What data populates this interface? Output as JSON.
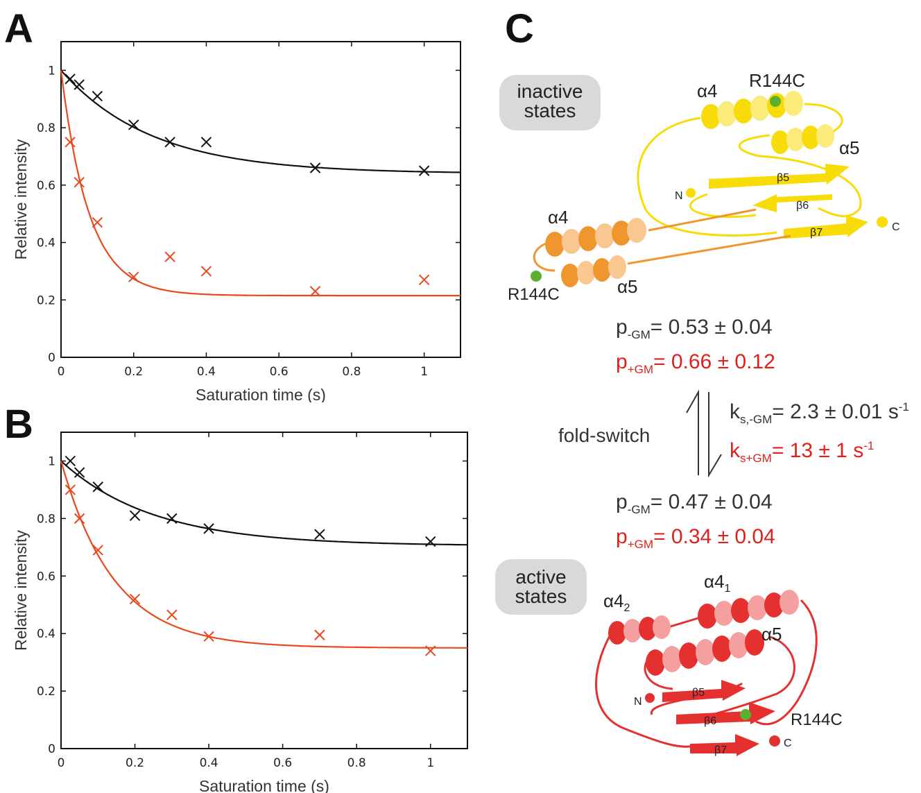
{
  "panel_letters": [
    "A",
    "B",
    "C"
  ],
  "colors": {
    "black_series": "#111111",
    "red_series": "#e8481c",
    "red_text": "#e0201c",
    "yellow": "#f7dc0a",
    "orange": "#f0962f",
    "red_protein": "#e53030",
    "green_dot": "#5bb030"
  },
  "chart_data": [
    {
      "type": "scatter",
      "panel": "A",
      "xlabel": "Saturation time (s)",
      "ylabel": "Relative intensity",
      "xlim": [
        0,
        1.1
      ],
      "ylim": [
        0,
        1.1
      ],
      "xticks": [
        "0",
        "0.2",
        "0.4",
        "0.6",
        "0.8",
        "1"
      ],
      "yticks": [
        "0",
        "0.2",
        "0.4",
        "0.6",
        "0.8",
        "1"
      ],
      "series": [
        {
          "color": "#111111",
          "points": [
            [
              0.025,
              0.97
            ],
            [
              0.05,
              0.95
            ],
            [
              0.1,
              0.91
            ],
            [
              0.2,
              0.81
            ],
            [
              0.3,
              0.75
            ],
            [
              0.4,
              0.75
            ],
            [
              0.7,
              0.66
            ],
            [
              1.0,
              0.65
            ]
          ],
          "fit": {
            "plateau": 0.64,
            "amplitude": 0.36,
            "rate": 4.0
          }
        },
        {
          "color": "#e8481c",
          "points": [
            [
              0.025,
              0.75
            ],
            [
              0.05,
              0.61
            ],
            [
              0.1,
              0.47
            ],
            [
              0.2,
              0.28
            ],
            [
              0.3,
              0.35
            ],
            [
              0.4,
              0.3
            ],
            [
              0.7,
              0.23
            ],
            [
              1.0,
              0.27
            ]
          ],
          "fit": {
            "plateau": 0.215,
            "amplitude": 0.785,
            "rate": 13.0
          }
        }
      ]
    },
    {
      "type": "scatter",
      "panel": "B",
      "xlabel": "Saturation time (s)",
      "ylabel": "Relative intensity",
      "xlim": [
        0,
        1.1
      ],
      "ylim": [
        0,
        1.1
      ],
      "xticks": [
        "0",
        "0.2",
        "0.4",
        "0.6",
        "0.8",
        "1"
      ],
      "yticks": [
        "0",
        "0.2",
        "0.4",
        "0.6",
        "0.8",
        "1"
      ],
      "series": [
        {
          "color": "#111111",
          "points": [
            [
              0.025,
              1.0
            ],
            [
              0.05,
              0.96
            ],
            [
              0.1,
              0.91
            ],
            [
              0.2,
              0.81
            ],
            [
              0.3,
              0.8
            ],
            [
              0.4,
              0.765
            ],
            [
              0.7,
              0.745
            ],
            [
              1.0,
              0.72
            ]
          ],
          "fit": {
            "plateau": 0.705,
            "amplitude": 0.295,
            "rate": 4.0
          }
        },
        {
          "color": "#e8481c",
          "points": [
            [
              0.025,
              0.9
            ],
            [
              0.05,
              0.8
            ],
            [
              0.1,
              0.69
            ],
            [
              0.2,
              0.52
            ],
            [
              0.3,
              0.465
            ],
            [
              0.4,
              0.39
            ],
            [
              0.7,
              0.395
            ],
            [
              1.0,
              0.34
            ]
          ],
          "fit": {
            "plateau": 0.35,
            "amplitude": 0.65,
            "rate": 7.0
          }
        }
      ]
    }
  ],
  "diagram": {
    "inactive_label_1": "inactive",
    "inactive_label_2": "states",
    "active_label_1": "active",
    "active_label_2": "states",
    "fold_switch": "fold-switch",
    "labels": {
      "a4_top": "α4",
      "r144c_top": "R144C",
      "a5_top": "α5",
      "b5_top": "β5",
      "b6_top": "β6",
      "b7_top": "β7",
      "n_top": "N",
      "c_top": "C",
      "a4_orange": "α4",
      "a5_orange": "α5",
      "r144c_orange": "R144C",
      "a4_2_base": "α4",
      "a4_2_sub": "2",
      "a4_1_base": "α4",
      "a4_1_sub": "1",
      "a5_red": "α5",
      "b5_red": "β5",
      "b6_red": "β6",
      "b7_red": "β7",
      "n_red": "N",
      "c_red": "C",
      "r144c_red": "R144C"
    },
    "stats": {
      "p_minus_top": {
        "base": "p",
        "sub": "-GM",
        "value": "= 0.53 ± 0.04"
      },
      "p_plus_top": {
        "base": "p",
        "sub": "+GM",
        "value": "= 0.66 ± 0.12"
      },
      "k_minus": {
        "base": "k",
        "sub": "s,-GM",
        "value": "= 2.3 ± 0.01 s",
        "sup": "-1"
      },
      "k_plus": {
        "base": "k",
        "sub": "s+GM",
        "value": "= 13 ± 1 s",
        "sup": "-1"
      },
      "p_minus_bottom": {
        "base": "p",
        "sub": "-GM",
        "value": "= 0.47 ± 0.04"
      },
      "p_plus_bottom": {
        "base": "p",
        "sub": "+GM",
        "value": "= 0.34 ± 0.04"
      }
    }
  }
}
